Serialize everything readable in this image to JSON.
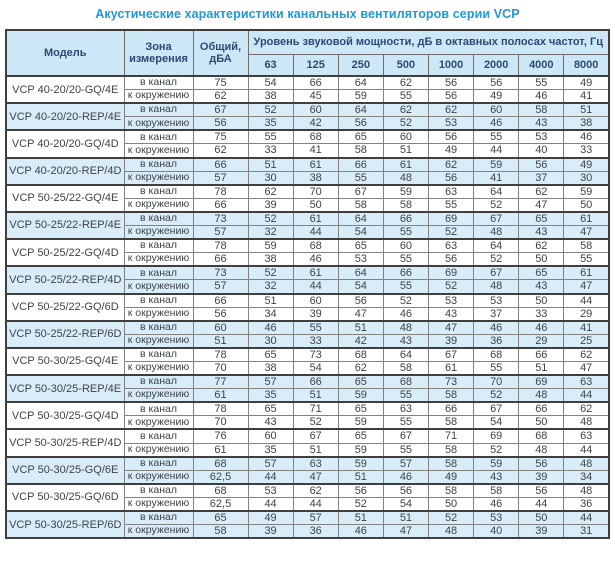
{
  "page_title": "Акустические характеристики канальных вентиляторов  серии VCP",
  "colors": {
    "title_text": "#2199d8",
    "header_bg": "#cde7f6",
    "header_text": "#2b4a74",
    "shaded_row_bg": "#d9edf9",
    "body_text": "#3d4449",
    "border_heavy": "#3f3f3f",
    "border_light": "#828282"
  },
  "table": {
    "column_headers": {
      "model": "Модель",
      "zone": "Зона измерения",
      "total": "Общий, дБА",
      "spl_group": "Уровень звуковой мощности, дБ в октавных полосах частот, Гц",
      "frequencies": [
        "63",
        "125",
        "250",
        "500",
        "1000",
        "2000",
        "4000",
        "8000"
      ]
    },
    "zone_labels": {
      "duct": "в канал",
      "ambient": "к окружению"
    },
    "rows": [
      {
        "model": "VCP 40-20/20-GQ/4E",
        "shaded": false,
        "duct": {
          "total": "75",
          "bands": [
            "54",
            "66",
            "64",
            "62",
            "56",
            "56",
            "55",
            "49"
          ]
        },
        "ambient": {
          "total": "62",
          "bands": [
            "38",
            "45",
            "59",
            "55",
            "56",
            "49",
            "46",
            "41"
          ]
        }
      },
      {
        "model": "VCP 40-20/20-REP/4E",
        "shaded": true,
        "duct": {
          "total": "67",
          "bands": [
            "52",
            "60",
            "64",
            "62",
            "62",
            "60",
            "58",
            "51"
          ]
        },
        "ambient": {
          "total": "56",
          "bands": [
            "35",
            "42",
            "56",
            "52",
            "53",
            "46",
            "43",
            "38"
          ]
        }
      },
      {
        "model": "VCP 40-20/20-GQ/4D",
        "shaded": false,
        "duct": {
          "total": "75",
          "bands": [
            "55",
            "68",
            "65",
            "60",
            "56",
            "55",
            "53",
            "46"
          ]
        },
        "ambient": {
          "total": "62",
          "bands": [
            "33",
            "41",
            "58",
            "51",
            "49",
            "44",
            "40",
            "33"
          ]
        }
      },
      {
        "model": "VCP 40-20/20-REP/4D",
        "shaded": true,
        "duct": {
          "total": "66",
          "bands": [
            "51",
            "61",
            "66",
            "61",
            "62",
            "59",
            "56",
            "49"
          ]
        },
        "ambient": {
          "total": "57",
          "bands": [
            "30",
            "38",
            "55",
            "48",
            "56",
            "41",
            "37",
            "30"
          ]
        }
      },
      {
        "model": "VCP 50-25/22-GQ/4E",
        "shaded": false,
        "duct": {
          "total": "78",
          "bands": [
            "62",
            "70",
            "67",
            "59",
            "63",
            "64",
            "62",
            "59"
          ]
        },
        "ambient": {
          "total": "66",
          "bands": [
            "39",
            "50",
            "58",
            "58",
            "55",
            "52",
            "47",
            "50"
          ]
        }
      },
      {
        "model": "VCP 50-25/22-REP/4E",
        "shaded": true,
        "duct": {
          "total": "73",
          "bands": [
            "52",
            "61",
            "64",
            "66",
            "69",
            "67",
            "65",
            "61"
          ]
        },
        "ambient": {
          "total": "57",
          "bands": [
            "32",
            "44",
            "54",
            "55",
            "52",
            "48",
            "43",
            "47"
          ]
        }
      },
      {
        "model": "VCP 50-25/22-GQ/4D",
        "shaded": false,
        "duct": {
          "total": "78",
          "bands": [
            "59",
            "68",
            "65",
            "60",
            "63",
            "64",
            "62",
            "58"
          ]
        },
        "ambient": {
          "total": "66",
          "bands": [
            "38",
            "46",
            "53",
            "55",
            "56",
            "52",
            "50",
            "55"
          ]
        }
      },
      {
        "model": "VCP 50-25/22-REP/4D",
        "shaded": true,
        "duct": {
          "total": "73",
          "bands": [
            "52",
            "61",
            "64",
            "66",
            "69",
            "67",
            "65",
            "61"
          ]
        },
        "ambient": {
          "total": "57",
          "bands": [
            "32",
            "44",
            "54",
            "55",
            "52",
            "48",
            "43",
            "47"
          ]
        }
      },
      {
        "model": "VCP 50-25/22-GQ/6D",
        "shaded": false,
        "duct": {
          "total": "66",
          "bands": [
            "51",
            "60",
            "56",
            "52",
            "53",
            "53",
            "50",
            "44"
          ]
        },
        "ambient": {
          "total": "56",
          "bands": [
            "34",
            "39",
            "47",
            "46",
            "43",
            "37",
            "33",
            "29"
          ]
        }
      },
      {
        "model": "VCP 50-25/22-REP/6D",
        "shaded": true,
        "duct": {
          "total": "60",
          "bands": [
            "46",
            "55",
            "51",
            "48",
            "47",
            "46",
            "46",
            "41"
          ]
        },
        "ambient": {
          "total": "51",
          "bands": [
            "30",
            "33",
            "42",
            "43",
            "39",
            "36",
            "29",
            "25"
          ]
        }
      },
      {
        "model": "VCP 50-30/25-GQ/4E",
        "shaded": false,
        "duct": {
          "total": "78",
          "bands": [
            "65",
            "73",
            "68",
            "64",
            "67",
            "68",
            "66",
            "62"
          ]
        },
        "ambient": {
          "total": "70",
          "bands": [
            "38",
            "54",
            "62",
            "58",
            "61",
            "55",
            "51",
            "47"
          ]
        }
      },
      {
        "model": "VCP 50-30/25-REP/4E",
        "shaded": true,
        "duct": {
          "total": "77",
          "bands": [
            "57",
            "66",
            "65",
            "68",
            "73",
            "70",
            "69",
            "63"
          ]
        },
        "ambient": {
          "total": "61",
          "bands": [
            "35",
            "51",
            "59",
            "55",
            "58",
            "52",
            "48",
            "44"
          ]
        }
      },
      {
        "model": "VCP 50-30/25-GQ/4D",
        "shaded": false,
        "duct": {
          "total": "78",
          "bands": [
            "65",
            "71",
            "65",
            "63",
            "66",
            "67",
            "66",
            "62"
          ]
        },
        "ambient": {
          "total": "70",
          "bands": [
            "43",
            "52",
            "59",
            "55",
            "58",
            "54",
            "50",
            "48"
          ]
        }
      },
      {
        "model": "VCP 50-30/25-REP/4D",
        "shaded": false,
        "duct": {
          "total": "76",
          "bands": [
            "60",
            "67",
            "65",
            "67",
            "71",
            "69",
            "68",
            "63"
          ]
        },
        "ambient": {
          "total": "61",
          "bands": [
            "35",
            "51",
            "59",
            "55",
            "58",
            "52",
            "48",
            "44"
          ]
        }
      },
      {
        "model": "VCP 50-30/25-GQ/6E",
        "shaded": true,
        "duct": {
          "total": "68",
          "bands": [
            "57",
            "63",
            "59",
            "57",
            "58",
            "59",
            "56",
            "48"
          ]
        },
        "ambient": {
          "total": "62,5",
          "bands": [
            "44",
            "47",
            "51",
            "46",
            "49",
            "43",
            "39",
            "34"
          ]
        }
      },
      {
        "model": "VCP 50-30/25-GQ/6D",
        "shaded": false,
        "duct": {
          "total": "68",
          "bands": [
            "53",
            "62",
            "56",
            "56",
            "58",
            "58",
            "56",
            "48"
          ]
        },
        "ambient": {
          "total": "62,5",
          "bands": [
            "44",
            "44",
            "52",
            "54",
            "50",
            "46",
            "44",
            "36"
          ]
        }
      },
      {
        "model": "VCP 50-30/25-REP/6D",
        "shaded": true,
        "duct": {
          "total": "65",
          "bands": [
            "49",
            "57",
            "51",
            "51",
            "52",
            "53",
            "50",
            "44"
          ]
        },
        "ambient": {
          "total": "58",
          "bands": [
            "39",
            "36",
            "46",
            "47",
            "48",
            "40",
            "39",
            "31"
          ]
        }
      }
    ]
  }
}
